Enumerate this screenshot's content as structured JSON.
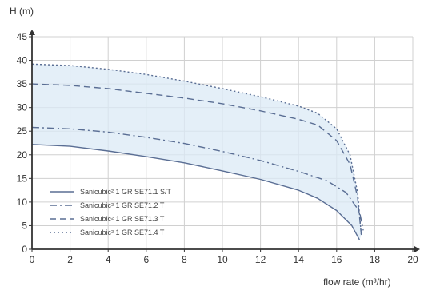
{
  "chart_data": {
    "type": "line",
    "ylabel": "H (m)",
    "xlabel": "flow rate (m³/hr)",
    "xlim": [
      0,
      20
    ],
    "ylim": [
      0,
      45
    ],
    "x_ticks": [
      0,
      2,
      4,
      6,
      8,
      10,
      12,
      14,
      16,
      18,
      20
    ],
    "y_ticks": [
      0,
      5,
      10,
      15,
      20,
      25,
      30,
      35,
      40,
      45
    ],
    "grid": true,
    "legend_position": "lower-left",
    "colors": {
      "line": "#5a6e94",
      "fill": "#dbe9f6",
      "grid": "#d0d0d0",
      "axis": "#333333"
    },
    "series": [
      {
        "name": "Sanicubic² 1 GR SE71.1 S/T",
        "dash": "solid",
        "x": [
          0,
          2,
          4,
          6,
          8,
          10,
          12,
          14,
          15,
          16,
          16.8,
          17.2
        ],
        "y": [
          22.2,
          21.8,
          20.8,
          19.6,
          18.3,
          16.6,
          14.8,
          12.5,
          10.8,
          8.2,
          5.0,
          2.0
        ]
      },
      {
        "name": "Sanicubic² 1 GR SE71.2 T",
        "dash": "dashdot",
        "x": [
          0,
          2,
          4,
          6,
          8,
          10,
          12,
          14,
          15.5,
          16.5,
          17.2,
          17.4
        ],
        "y": [
          25.8,
          25.5,
          24.8,
          23.7,
          22.4,
          20.7,
          18.8,
          16.5,
          14.5,
          12.0,
          8.0,
          4.0
        ]
      },
      {
        "name": "Sanicubic² 1 GR SE71.3 T",
        "dash": "dashed",
        "x": [
          0,
          2,
          4,
          6,
          8,
          10,
          12,
          14,
          15,
          16,
          16.7,
          17.1,
          17.3
        ],
        "y": [
          35.0,
          34.7,
          34.0,
          33.0,
          32.0,
          30.8,
          29.3,
          27.5,
          26.3,
          23.0,
          18.0,
          11.0,
          3.0
        ]
      },
      {
        "name": "Sanicubic² 1 GR SE71.4 T",
        "dash": "dotted",
        "x": [
          0,
          2,
          4,
          6,
          8,
          10,
          12,
          14,
          15,
          16,
          16.7,
          17.1,
          17.3
        ],
        "y": [
          39.2,
          38.9,
          38.1,
          37.0,
          35.6,
          34.0,
          32.3,
          30.3,
          28.8,
          25.5,
          20.0,
          12.0,
          3.0
        ]
      }
    ]
  }
}
